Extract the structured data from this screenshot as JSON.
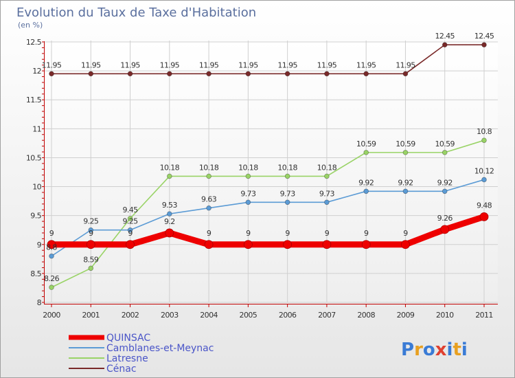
{
  "title": "Evolution du Taux de Taxe d'Habitation",
  "subtitle": "(en %)",
  "logo": {
    "letters": [
      "P",
      "r",
      "o",
      "x",
      "i",
      "t",
      "i"
    ],
    "colors": [
      "#3a7bd5",
      "#e8a020",
      "#3a7bd5",
      "#e04030",
      "#3a7bd5",
      "#e8a020",
      "#3a7bd5"
    ]
  },
  "chart_data": {
    "type": "line",
    "x": [
      "2000",
      "2001",
      "2002",
      "2003",
      "2004",
      "2005",
      "2006",
      "2007",
      "2008",
      "2009",
      "2010",
      "2011"
    ],
    "ylim": [
      8,
      12.5
    ],
    "yticks": [
      "8",
      "8.5",
      "9",
      "9.5",
      "10",
      "10.5",
      "11",
      "11.5",
      "12",
      "12.5"
    ],
    "ytick_values": [
      8,
      8.5,
      9,
      9.5,
      10,
      10.5,
      11,
      11.5,
      12,
      12.5
    ],
    "grid": true,
    "legend_position": "bottom-left",
    "series": [
      {
        "name": "Cénac",
        "color": "#7a2a2a",
        "values": [
          11.95,
          11.95,
          11.95,
          11.95,
          11.95,
          11.95,
          11.95,
          11.95,
          11.95,
          11.95,
          12.45,
          12.45
        ],
        "labels": [
          "11.95",
          "11.95",
          "11.95",
          "11.95",
          "11.95",
          "11.95",
          "11.95",
          "11.95",
          "11.95",
          "11.95",
          "12.45",
          "12.45"
        ]
      },
      {
        "name": "Latresne",
        "color": "#99d366",
        "values": [
          8.26,
          8.59,
          9.45,
          10.18,
          10.18,
          10.18,
          10.18,
          10.18,
          10.59,
          10.59,
          10.59,
          10.8
        ],
        "labels": [
          "8.26",
          "8.59",
          "9.45",
          "10.18",
          "10.18",
          "10.18",
          "10.18",
          "10.18",
          "10.59",
          "10.59",
          "10.59",
          "10.8"
        ]
      },
      {
        "name": "Camblanes-et-Meynac",
        "color": "#5b9bd5",
        "values": [
          8.8,
          9.25,
          9.25,
          9.53,
          9.63,
          9.73,
          9.73,
          9.73,
          9.92,
          9.92,
          9.92,
          10.12
        ],
        "labels": [
          "8.8",
          "9.25",
          "9.25",
          "9.53",
          "9.63",
          "9.73",
          "9.73",
          "9.73",
          "9.92",
          "9.92",
          "9.92",
          "10.12"
        ]
      },
      {
        "name": "QUINSAC",
        "color": "#ee0000",
        "values": [
          9,
          9,
          9,
          9.2,
          9,
          9,
          9,
          9,
          9,
          9,
          9.26,
          9.48
        ],
        "labels": [
          "9",
          "9",
          "9",
          "9.2",
          "9",
          "9",
          "9",
          "9",
          "9",
          "9",
          "9.26",
          "9.48"
        ]
      }
    ],
    "legend_order": [
      "QUINSAC",
      "Camblanes-et-Meynac",
      "Latresne",
      "Cénac"
    ]
  }
}
